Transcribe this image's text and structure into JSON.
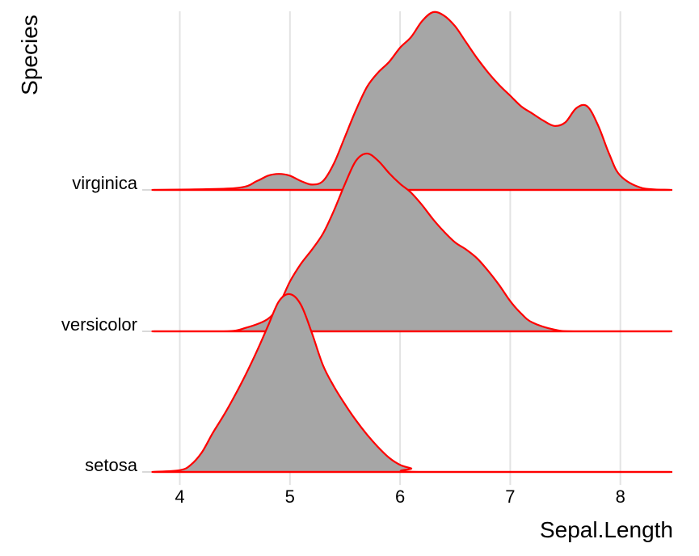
{
  "chart_data": {
    "type": "ridgeline",
    "xlabel": "Sepal.Length",
    "ylabel": "Species",
    "xlim": [
      3.75,
      8.45
    ],
    "x_ticks": [
      4,
      5,
      6,
      7,
      8
    ],
    "x_tick_labels": [
      "4",
      "5",
      "6",
      "7",
      "8"
    ],
    "grid": true,
    "fill_color": "#a6a6a6",
    "line_color": "#ff0000",
    "categories": [
      "virginica",
      "versicolor",
      "setosa"
    ],
    "series": [
      {
        "name": "virginica",
        "x": [
          3.75,
          4.5,
          4.7,
          4.8,
          4.9,
          5.0,
          5.1,
          5.2,
          5.3,
          5.4,
          5.5,
          5.6,
          5.7,
          5.8,
          5.9,
          6.0,
          6.1,
          6.2,
          6.3,
          6.4,
          6.5,
          6.6,
          6.7,
          6.8,
          6.9,
          7.0,
          7.1,
          7.2,
          7.3,
          7.4,
          7.5,
          7.6,
          7.7,
          7.8,
          7.9,
          8.0,
          8.2,
          8.45
        ],
        "density": [
          0.0,
          0.01,
          0.05,
          0.08,
          0.09,
          0.08,
          0.05,
          0.03,
          0.05,
          0.15,
          0.3,
          0.45,
          0.58,
          0.66,
          0.72,
          0.8,
          0.86,
          0.95,
          1.0,
          0.98,
          0.92,
          0.83,
          0.74,
          0.66,
          0.59,
          0.53,
          0.47,
          0.43,
          0.39,
          0.36,
          0.38,
          0.46,
          0.47,
          0.36,
          0.2,
          0.08,
          0.01,
          0.0
        ]
      },
      {
        "name": "versicolor",
        "x": [
          3.75,
          4.4,
          4.6,
          4.8,
          4.9,
          5.0,
          5.1,
          5.2,
          5.3,
          5.4,
          5.5,
          5.6,
          5.7,
          5.8,
          5.9,
          6.0,
          6.1,
          6.2,
          6.3,
          6.4,
          6.5,
          6.6,
          6.7,
          6.8,
          6.9,
          7.0,
          7.1,
          7.2,
          7.4,
          7.6,
          8.45
        ],
        "density": [
          0.0,
          0.0,
          0.02,
          0.07,
          0.15,
          0.28,
          0.38,
          0.46,
          0.55,
          0.68,
          0.83,
          0.96,
          1.0,
          0.96,
          0.89,
          0.83,
          0.78,
          0.71,
          0.63,
          0.56,
          0.5,
          0.46,
          0.41,
          0.34,
          0.26,
          0.17,
          0.1,
          0.05,
          0.01,
          0.0,
          0.0
        ]
      },
      {
        "name": "setosa",
        "x": [
          3.75,
          4.0,
          4.1,
          4.2,
          4.3,
          4.4,
          4.5,
          4.6,
          4.7,
          4.8,
          4.9,
          5.0,
          5.1,
          5.2,
          5.3,
          5.4,
          5.5,
          5.6,
          5.7,
          5.8,
          5.9,
          6.0,
          6.1,
          6.2,
          8.45
        ],
        "density": [
          0.0,
          0.01,
          0.04,
          0.11,
          0.22,
          0.32,
          0.43,
          0.55,
          0.68,
          0.82,
          0.96,
          1.0,
          0.94,
          0.78,
          0.6,
          0.48,
          0.38,
          0.29,
          0.21,
          0.14,
          0.08,
          0.04,
          0.02,
          0.0,
          0.0
        ]
      }
    ]
  }
}
